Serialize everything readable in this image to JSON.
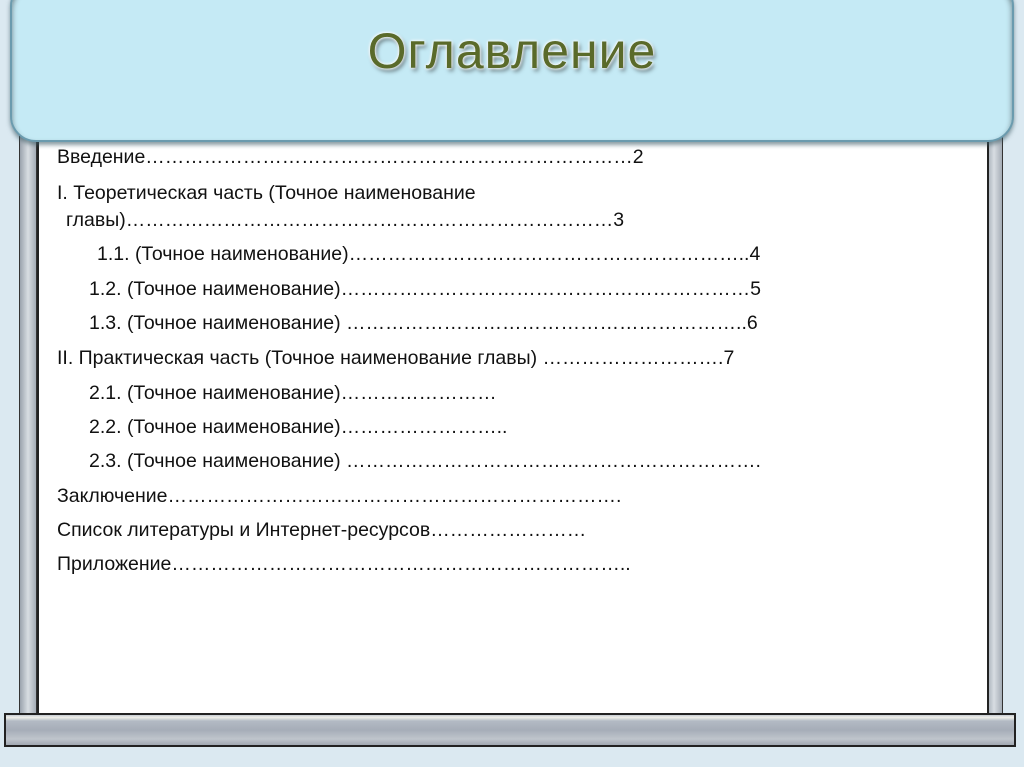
{
  "title": "Оглавление",
  "toc": [
    {
      "text": "Введение…………………………………………………………………2"
    },
    {
      "text": "I. Теоретическая часть (Точное наименование"
    },
    {
      "text": "главы)…………………………………………………………………3"
    },
    {
      "text": "1.1. (Точное наименование)……………………………………………………..4"
    },
    {
      "text": "1.2. (Точное наименование)………………………………………………………5"
    },
    {
      "text": "1.3. (Точное наименование) ……………………………………………………..6"
    },
    {
      "text": "II.   Практическая часть (Точное наименование главы) ……………………….7"
    },
    {
      "text": "2.1. (Точное наименование)……………………"
    },
    {
      "text": "2.2. (Точное наименование)…………………….."
    },
    {
      "text": "2.3. (Точное наименование) ………………………………………………………."
    },
    {
      "text": "Заключение……………………………………………………………."
    },
    {
      "text": "Список литературы  и Интернет-ресурсов……………………"
    },
    {
      "text": "Приложение…………………………………………………………….."
    }
  ]
}
